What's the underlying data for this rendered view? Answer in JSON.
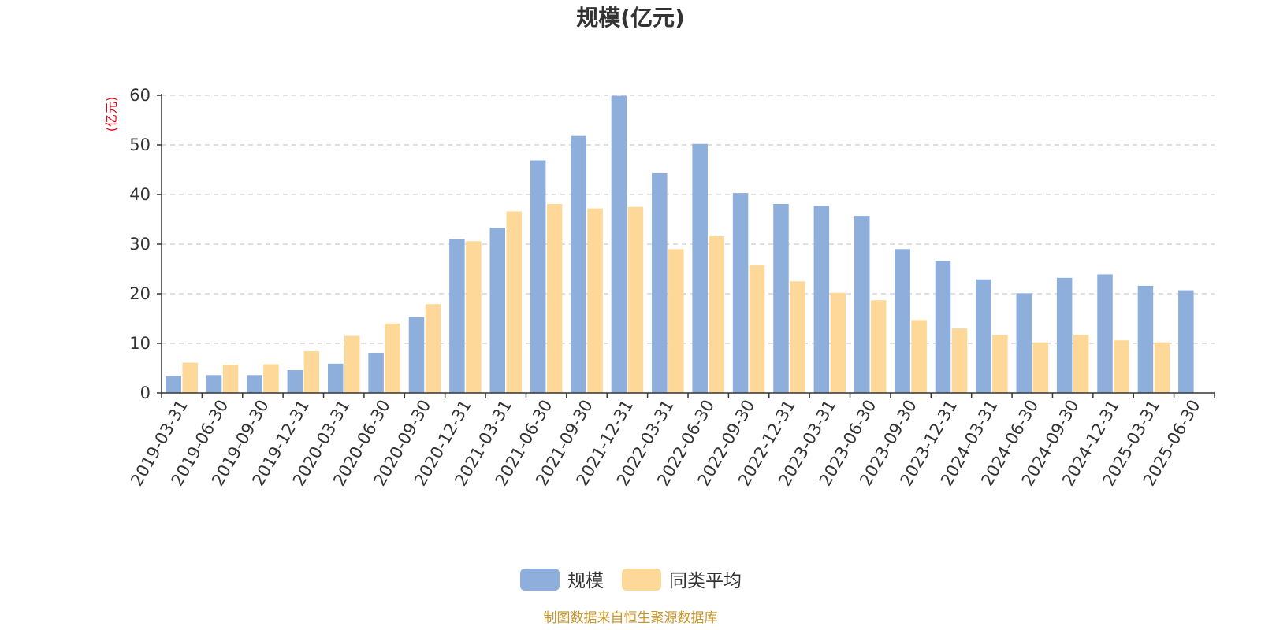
{
  "chart_data": {
    "type": "bar",
    "title": "规模(亿元)",
    "yunit": "(亿元)",
    "ylim": [
      0,
      60
    ],
    "yticks": [
      0,
      10,
      20,
      30,
      40,
      50,
      60
    ],
    "grid": true,
    "legend_position": "bottom-center",
    "categories": [
      "2019-03-31",
      "2019-06-30",
      "2019-09-30",
      "2019-12-31",
      "2020-03-31",
      "2020-06-30",
      "2020-09-30",
      "2020-12-31",
      "2021-03-31",
      "2021-06-30",
      "2021-09-30",
      "2021-12-31",
      "2022-03-31",
      "2022-06-30",
      "2022-09-30",
      "2022-12-31",
      "2023-03-31",
      "2023-06-30",
      "2023-09-30",
      "2023-12-31",
      "2024-03-31",
      "2024-06-30",
      "2024-09-30",
      "2024-12-31",
      "2025-03-31",
      "2025-06-30"
    ],
    "series": [
      {
        "name": "规模",
        "color": "#8eaedb",
        "values": [
          3.4,
          3.6,
          3.6,
          4.6,
          5.9,
          8.1,
          15.3,
          31.0,
          33.3,
          46.9,
          51.8,
          59.9,
          44.3,
          50.2,
          40.3,
          38.1,
          37.7,
          35.7,
          29.0,
          26.6,
          22.9,
          20.1,
          23.2,
          23.9,
          21.6,
          20.7
        ]
      },
      {
        "name": "同类平均",
        "color": "#fdd898",
        "values": [
          6.1,
          5.7,
          5.8,
          8.4,
          11.5,
          14.0,
          17.9,
          30.6,
          36.6,
          38.1,
          37.2,
          37.5,
          29.0,
          31.6,
          25.8,
          22.5,
          20.2,
          18.7,
          14.7,
          13.0,
          11.7,
          10.2,
          11.7,
          10.6,
          10.2,
          null
        ]
      }
    ]
  },
  "source_note": "制图数据来自恒生聚源数据库"
}
